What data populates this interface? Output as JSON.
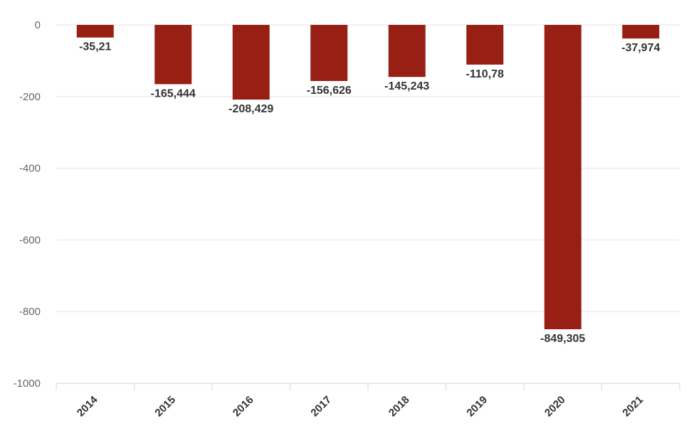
{
  "chart_data": {
    "type": "bar",
    "categories": [
      "2014",
      "2015",
      "2016",
      "2017",
      "2018",
      "2019",
      "2020",
      "2021"
    ],
    "values": [
      -35.21,
      -165.444,
      -208.429,
      -156.626,
      -145.243,
      -110.78,
      -849.305,
      -37.974
    ],
    "data_labels": [
      "-35,21",
      "-165,444",
      "-208,429",
      "-156,626",
      "-145,243",
      "-110,78",
      "-849,305",
      "-37,974"
    ],
    "ylim": [
      -1000,
      0
    ],
    "yticks": [
      0,
      -200,
      -400,
      -600,
      -800,
      -1000
    ],
    "ytick_labels": [
      "0",
      "-200",
      "-400",
      "-600",
      "-800",
      "-1000"
    ],
    "grid": true,
    "bar_color": "#971f14",
    "title": "",
    "xlabel": "",
    "ylabel": ""
  }
}
